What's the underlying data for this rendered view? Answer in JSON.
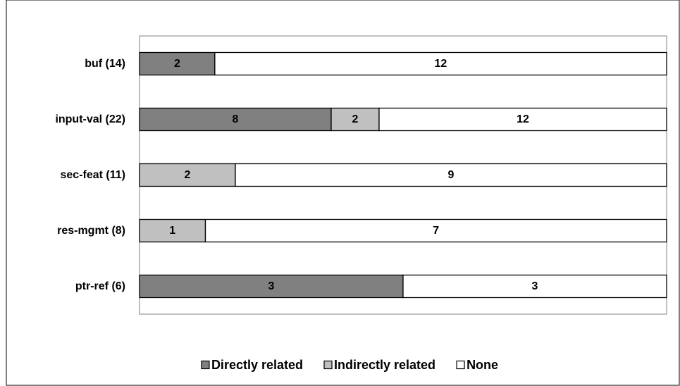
{
  "chart_data": {
    "type": "bar",
    "orientation": "horizontal",
    "stacked": true,
    "normalized": true,
    "categories": [
      "buf (14)",
      "input-val (22)",
      "sec-feat (11)",
      "res-mgmt (8)",
      "ptr-ref (6)"
    ],
    "series": [
      {
        "name": "Directly related",
        "values": [
          2,
          8,
          0,
          0,
          3
        ],
        "color": "#808080"
      },
      {
        "name": "Indirectly related",
        "values": [
          0,
          2,
          2,
          1,
          0
        ],
        "color": "#c0c0c0"
      },
      {
        "name": "None",
        "values": [
          12,
          12,
          9,
          7,
          3
        ],
        "color": "#ffffff"
      }
    ],
    "data_labels": true,
    "grid": false,
    "legend_position": "bottom"
  }
}
